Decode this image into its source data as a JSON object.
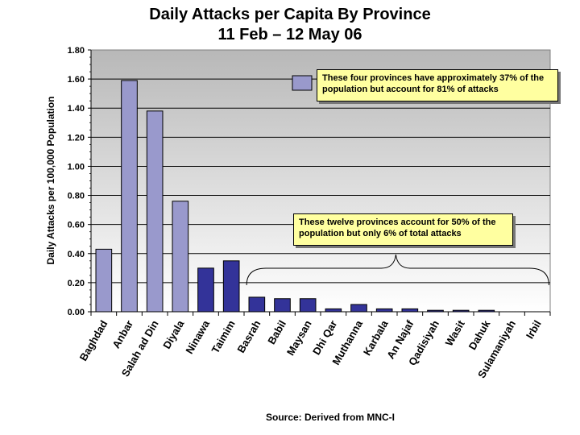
{
  "chart_data": {
    "type": "bar",
    "title": "Daily Attacks per Capita By Province",
    "subtitle": "11 Feb – 12 May 06",
    "ylabel": "Daily Attacks per 100,000 Population",
    "ylim": [
      0,
      1.8
    ],
    "yticks": [
      "0.00",
      "0.20",
      "0.40",
      "0.60",
      "0.80",
      "1.00",
      "1.20",
      "1.40",
      "1.60",
      "1.80"
    ],
    "grid": true,
    "categories": [
      "Baghdad",
      "Anbar",
      "Salah ad Din",
      "Diyala",
      "Ninawa",
      "Taimim",
      "Basrah",
      "Babil",
      "Maysan",
      "Dhi Qar",
      "Muthanna",
      "Karbala",
      "An Najaf",
      "Qadisiyah",
      "Wasit",
      "Dahuk",
      "Sulamaniyah",
      "Irbil"
    ],
    "values": [
      0.43,
      1.59,
      1.38,
      0.76,
      0.3,
      0.35,
      0.1,
      0.09,
      0.09,
      0.02,
      0.05,
      0.02,
      0.02,
      0.01,
      0.01,
      0.01,
      0.0,
      0.0
    ],
    "colors": {
      "highlight": "#9999cc",
      "other": "#333399",
      "plot_top": "#b8b8b8",
      "plot_bottom": "#ffffff"
    },
    "annotations": [
      "These four provinces have approximately 37% of the population but account for 81% of attacks",
      "These twelve provinces account for 50% of the population but only 6% of total attacks"
    ],
    "source": "Source: Derived from MNC-I"
  }
}
